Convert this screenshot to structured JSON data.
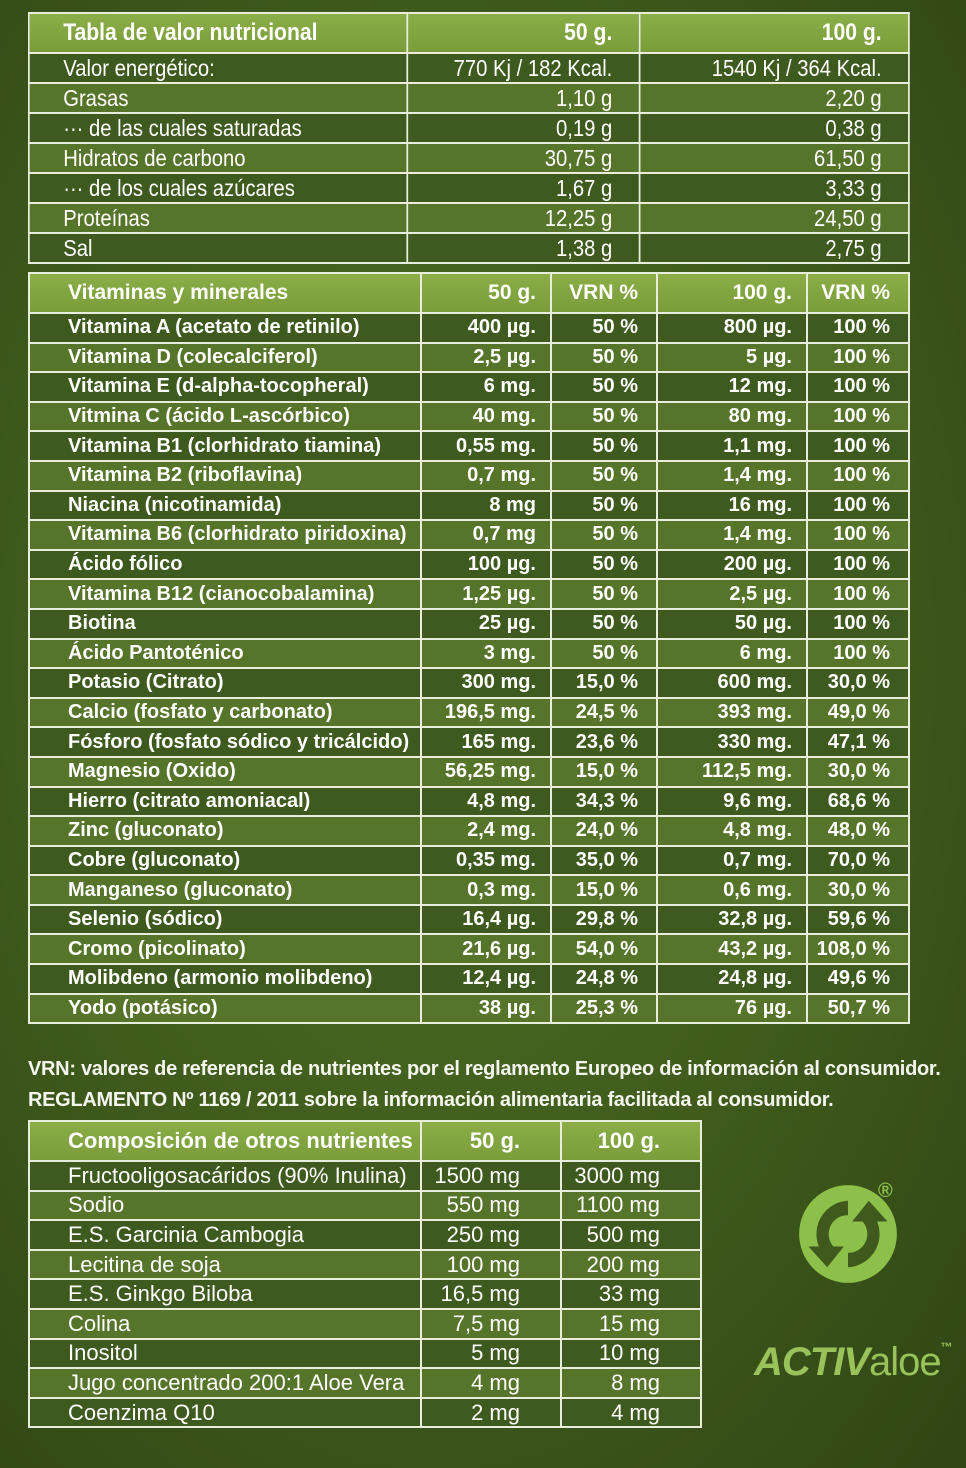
{
  "table1": {
    "header": {
      "label": "Tabla de valor nutricional",
      "c50": "50 g.",
      "c100": "100 g."
    },
    "rows": [
      {
        "label": "Valor energético:",
        "v50": "770 Kj / 182 Kcal.",
        "v100": "1540 Kj / 364 Kcal."
      },
      {
        "label": "Grasas",
        "v50": "1,10 g",
        "v100": "2,20 g"
      },
      {
        "label": "··· de las cuales saturadas",
        "v50": "0,19 g",
        "v100": "0,38 g"
      },
      {
        "label": "Hidratos de carbono",
        "v50": "30,75 g",
        "v100": "61,50 g"
      },
      {
        "label": "··· de los cuales azúcares",
        "v50": "1,67 g",
        "v100": "3,33 g"
      },
      {
        "label": "Proteínas",
        "v50": "12,25 g",
        "v100": "24,50 g"
      },
      {
        "label": "Sal",
        "v50": "1,38 g",
        "v100": "2,75 g"
      }
    ]
  },
  "table2": {
    "header": {
      "label": "Vitaminas y minerales",
      "c50": "50 g.",
      "vrn1": "VRN %",
      "c100": "100 g.",
      "vrn2": "VRN %"
    },
    "rows": [
      {
        "label": "Vitamina A (acetato de retinilo)",
        "v50": "400 µg.",
        "p50": "50 %",
        "v100": "800 µg.",
        "p100": "100 %"
      },
      {
        "label": "Vitamina D (colecalciferol)",
        "v50": "2,5 µg.",
        "p50": "50 %",
        "v100": "5 µg.",
        "p100": "100 %"
      },
      {
        "label": "Vitamina E (d-alpha-tocopheral)",
        "v50": "6 mg.",
        "p50": "50 %",
        "v100": "12 mg.",
        "p100": "100 %"
      },
      {
        "label": "Vitmina C (ácido L-ascórbico)",
        "v50": "40 mg.",
        "p50": "50 %",
        "v100": "80 mg.",
        "p100": "100 %"
      },
      {
        "label": "Vitamina B1 (clorhidrato tiamina)",
        "v50": "0,55 mg.",
        "p50": "50 %",
        "v100": "1,1  mg.",
        "p100": "100 %"
      },
      {
        "label": "Vitamina B2 (riboflavina)",
        "v50": "0,7 mg.",
        "p50": "50 %",
        "v100": "1,4 mg.",
        "p100": "100 %"
      },
      {
        "label": "Niacina (nicotinamida)",
        "v50": "8 mg",
        "p50": "50 %",
        "v100": "16 mg.",
        "p100": "100 %"
      },
      {
        "label": "Vitamina B6 (clorhidrato piridoxina)",
        "v50": "0,7 mg",
        "p50": "50 %",
        "v100": "1,4 mg.",
        "p100": "100 %"
      },
      {
        "label": "Ácido fólico",
        "v50": "100 µg.",
        "p50": "50 %",
        "v100": "200 µg.",
        "p100": "100 %"
      },
      {
        "label": "Vitamina B12 (cianocobalamina)",
        "v50": "1,25 µg.",
        "p50": "50 %",
        "v100": "2,5 µg.",
        "p100": "100 %"
      },
      {
        "label": "Biotina",
        "v50": "25 µg.",
        "p50": "50 %",
        "v100": "50 µg.",
        "p100": "100 %"
      },
      {
        "label": "Ácido Pantoténico",
        "v50": "3 mg.",
        "p50": "50 %",
        "v100": "6 mg.",
        "p100": "100 %"
      },
      {
        "label": "Potasio (Citrato)",
        "v50": "300 mg.",
        "p50": "15,0 %",
        "v100": "600 mg.",
        "p100": "30,0 %"
      },
      {
        "label": "Calcio (fosfato y carbonato)",
        "v50": "196,5 mg.",
        "p50": "24,5 %",
        "v100": "393 mg.",
        "p100": "49,0 %"
      },
      {
        "label": "Fósforo (fosfato sódico y tricálcido)",
        "v50": "165 mg.",
        "p50": "23,6 %",
        "v100": "330 mg.",
        "p100": "47,1 %"
      },
      {
        "label": "Magnesio (Oxido)",
        "v50": "56,25 mg.",
        "p50": "15,0 %",
        "v100": "112,5 mg.",
        "p100": "30,0 %"
      },
      {
        "label": "Hierro (citrato amoniacal)",
        "v50": "4,8 mg.",
        "p50": "34,3 %",
        "v100": "9,6 mg.",
        "p100": "68,6 %"
      },
      {
        "label": "Zinc (gluconato)",
        "v50": "2,4 mg.",
        "p50": "24,0 %",
        "v100": "4,8 mg.",
        "p100": "48,0 %"
      },
      {
        "label": "Cobre (gluconato)",
        "v50": "0,35 mg.",
        "p50": "35,0 %",
        "v100": "0,7 mg.",
        "p100": "70,0 %"
      },
      {
        "label": "Manganeso (gluconato)",
        "v50": "0,3 mg.",
        "p50": "15,0 %",
        "v100": "0,6 mg.",
        "p100": "30,0 %"
      },
      {
        "label": "Selenio (sódico)",
        "v50": "16,4 µg.",
        "p50": "29,8 %",
        "v100": "32,8 µg.",
        "p100": "59,6 %"
      },
      {
        "label": "Cromo (picolinato)",
        "v50": "21,6 µg.",
        "p50": "54,0 %",
        "v100": "43,2 µg.",
        "p100": "108,0 %"
      },
      {
        "label": "Molibdeno (armonio molibdeno)",
        "v50": "12,4 µg.",
        "p50": "24,8 %",
        "v100": "24,8 µg.",
        "p100": "49,6 %"
      },
      {
        "label": "Yodo (potásico)",
        "v50": "38 µg.",
        "p50": "25,3 %",
        "v100": "76 µg.",
        "p100": "50,7 %"
      }
    ]
  },
  "note": {
    "line1": "VRN: valores de referencia de nutrientes por el reglamento Europeo de información al consumidor.",
    "line2": "REGLAMENTO Nº 1169 / 2011 sobre la información alimentaria facilitada al consumidor."
  },
  "table3": {
    "header": {
      "label": "Composición de otros nutrientes",
      "c50": "50 g.",
      "c100": "100 g."
    },
    "rows": [
      {
        "label": "Fructooligosacáridos (90% Inulina)",
        "v50": "1500 mg",
        "v100": "3000 mg"
      },
      {
        "label": "Sodio",
        "v50": "550 mg",
        "v100": "1100 mg"
      },
      {
        "label": "E.S. Garcinia Cambogia",
        "v50": "250 mg",
        "v100": "500 mg"
      },
      {
        "label": "Lecitina de soja",
        "v50": "100 mg",
        "v100": "200 mg"
      },
      {
        "label": "E.S. Ginkgo Biloba",
        "v50": "16,5 mg",
        "v100": "33 mg"
      },
      {
        "label": "Colina",
        "v50": "7,5 mg",
        "v100": "15 mg"
      },
      {
        "label": "Inositol",
        "v50": "5 mg",
        "v100": "10 mg"
      },
      {
        "label": "Jugo concentrado 200:1 Aloe Vera",
        "v50": "4 mg",
        "v100": "8 mg"
      },
      {
        "label": "Coenzima Q10",
        "v50": "2 mg",
        "v100": "4 mg"
      }
    ]
  },
  "brand": {
    "bold": "ACTIV",
    "thin": "aloe",
    "tm": "™",
    "reg": "®"
  },
  "icons": {
    "recycle": "green-dot-recycle-icon"
  },
  "colors": {
    "header": "#86a844",
    "row_dark": "#3e5a1e",
    "row_light": "#56742a",
    "brand": "#9ac25a"
  }
}
